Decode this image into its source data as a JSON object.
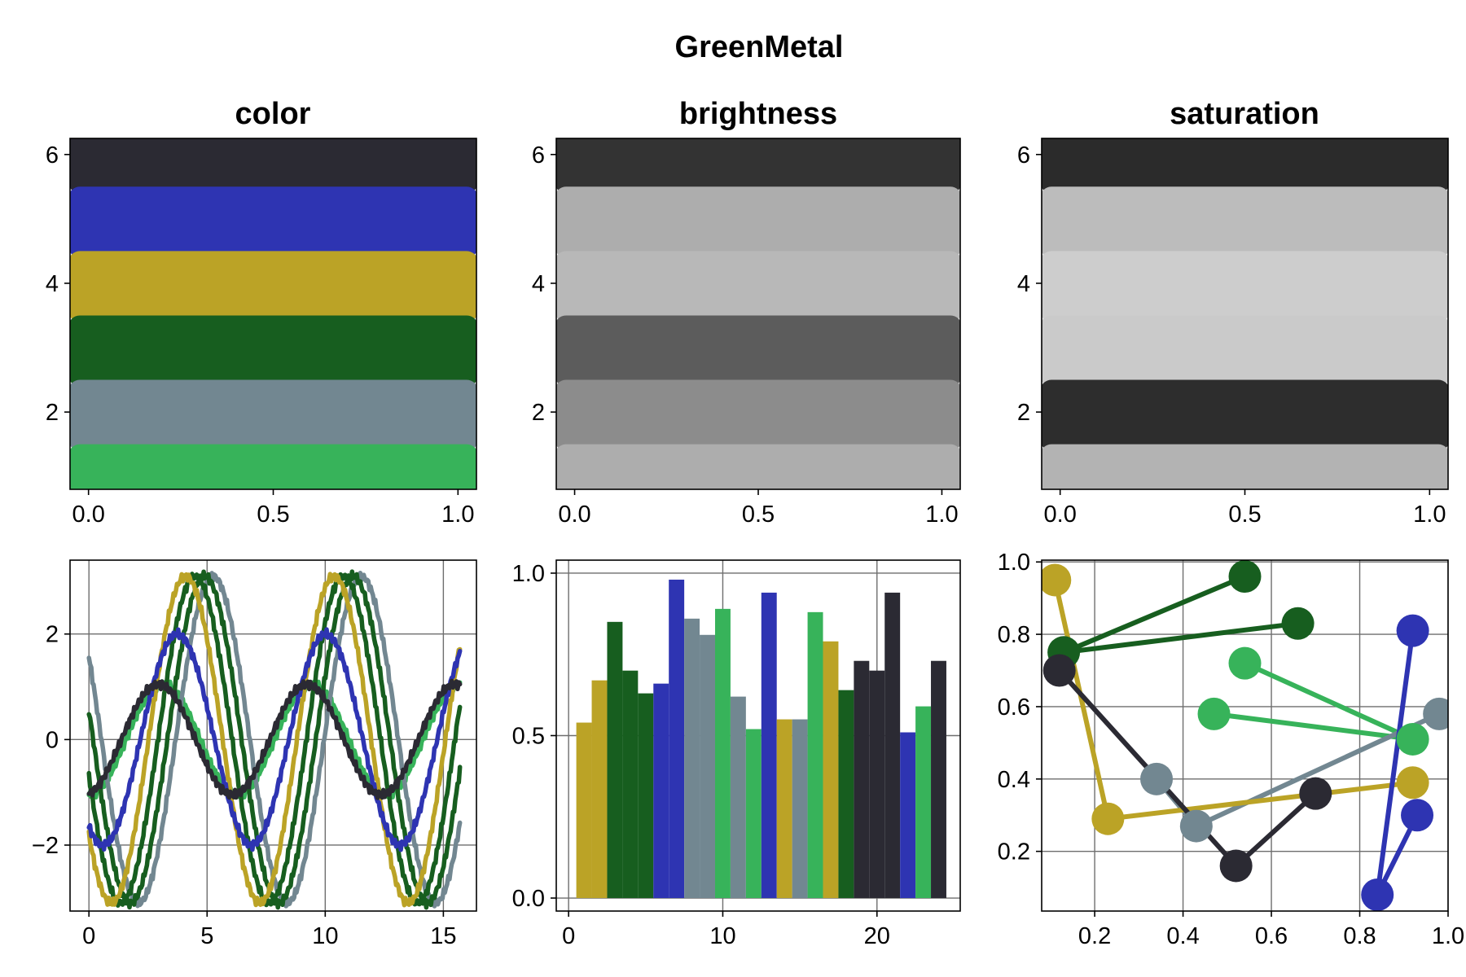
{
  "figure": {
    "title": "GreenMetal"
  },
  "palette": [
    "#37b35a",
    "#728791",
    "#175e1f",
    "#bba326",
    "#2e34b2",
    "#2b2a33"
  ],
  "chart_data": [
    {
      "type": "bar",
      "title": "color",
      "xlim": [
        -0.05,
        1.05
      ],
      "ylim": [
        0.8,
        6.25
      ],
      "xticks": [
        0.0,
        0.5,
        1.0
      ],
      "xtick_labels": [
        "0.0",
        "0.5",
        "1.0"
      ],
      "yticks": [
        2,
        4,
        6
      ],
      "ytick_labels": [
        "2",
        "4",
        "6"
      ],
      "grid": false,
      "bands": [
        {
          "level": 1,
          "color": "#37b35a"
        },
        {
          "level": 2,
          "color": "#728791"
        },
        {
          "level": 3,
          "color": "#175e1f"
        },
        {
          "level": 4,
          "color": "#bba326"
        },
        {
          "level": 5,
          "color": "#2e34b2"
        },
        {
          "level": 6,
          "color": "#2b2a33"
        }
      ]
    },
    {
      "type": "bar",
      "title": "brightness",
      "xlim": [
        -0.05,
        1.05
      ],
      "ylim": [
        0.8,
        6.25
      ],
      "xticks": [
        0.0,
        0.5,
        1.0
      ],
      "xtick_labels": [
        "0.0",
        "0.5",
        "1.0"
      ],
      "yticks": [
        2,
        4,
        6
      ],
      "ytick_labels": [
        "2",
        "4",
        "6"
      ],
      "grid": false,
      "bands": [
        {
          "level": 1,
          "color": "#adadad"
        },
        {
          "level": 2,
          "color": "#8c8c8c"
        },
        {
          "level": 3,
          "color": "#5c5c5c"
        },
        {
          "level": 4,
          "color": "#b8b8b8"
        },
        {
          "level": 5,
          "color": "#adadad"
        },
        {
          "level": 6,
          "color": "#333333"
        }
      ]
    },
    {
      "type": "bar",
      "title": "saturation",
      "xlim": [
        -0.05,
        1.05
      ],
      "ylim": [
        0.8,
        6.25
      ],
      "xticks": [
        0.0,
        0.5,
        1.0
      ],
      "xtick_labels": [
        "0.0",
        "0.5",
        "1.0"
      ],
      "yticks": [
        2,
        4,
        6
      ],
      "ytick_labels": [
        "2",
        "4",
        "6"
      ],
      "grid": false,
      "bands": [
        {
          "level": 1,
          "color": "#b3b3b3"
        },
        {
          "level": 2,
          "color": "#2d2d2d"
        },
        {
          "level": 3,
          "color": "#cacaca"
        },
        {
          "level": 4,
          "color": "#cdcdcd"
        },
        {
          "level": 5,
          "color": "#bcbcbc"
        },
        {
          "level": 6,
          "color": "#2b2b2b"
        }
      ]
    },
    {
      "type": "line",
      "xlim": [
        -0.8,
        16.4
      ],
      "ylim": [
        -3.25,
        3.4
      ],
      "xticks": [
        0,
        5,
        10,
        15
      ],
      "xtick_labels": [
        "0",
        "5",
        "10",
        "15"
      ],
      "yticks": [
        -2,
        0,
        2
      ],
      "ytick_labels": [
        "−2",
        "0",
        "2"
      ],
      "grid": true,
      "x_range": [
        0,
        15.7
      ],
      "series": [
        {
          "color": "#37b35a",
          "amplitude": 1.05,
          "phase_shift": 0.0
        },
        {
          "color": "#728791",
          "amplitude": 3.1,
          "phase_shift": 2.1
        },
        {
          "color": "#175e1f",
          "amplitude": 3.1,
          "phase_shift": 1.75
        },
        {
          "color": "#175e1f",
          "amplitude": 3.1,
          "phase_shift": 1.35
        },
        {
          "color": "#bba326",
          "amplitude": 3.1,
          "phase_shift": 0.95
        },
        {
          "color": "#2e34b2",
          "amplitude": 2.0,
          "phase_shift": 0.6
        },
        {
          "color": "#2b2a33",
          "amplitude": 1.05,
          "phase_shift": -0.2
        }
      ]
    },
    {
      "type": "bar",
      "xlim": [
        -0.8,
        25.4
      ],
      "ylim": [
        -0.04,
        1.04
      ],
      "xticks": [
        0,
        10,
        20
      ],
      "xtick_labels": [
        "0",
        "10",
        "20"
      ],
      "yticks": [
        0.0,
        0.5,
        1.0
      ],
      "ytick_labels": [
        "0.0",
        "0.5",
        "1.0"
      ],
      "grid": true,
      "categories": [
        1,
        2,
        3,
        4,
        5,
        6,
        7,
        8,
        9,
        10,
        11,
        12,
        13,
        14,
        15,
        16,
        17,
        18,
        19,
        20,
        21,
        22,
        23,
        24
      ],
      "values": [
        0.54,
        0.67,
        0.85,
        0.7,
        0.63,
        0.66,
        0.98,
        0.86,
        0.81,
        0.89,
        0.62,
        0.52,
        0.94,
        0.55,
        0.55,
        0.88,
        0.79,
        0.64,
        0.73,
        0.7,
        0.94,
        0.51,
        0.59,
        0.73
      ],
      "colors": [
        "#bba326",
        "#bba326",
        "#175e1f",
        "#175e1f",
        "#175e1f",
        "#2e34b2",
        "#2e34b2",
        "#728791",
        "#728791",
        "#37b35a",
        "#728791",
        "#37b35a",
        "#2e34b2",
        "#bba326",
        "#728791",
        "#37b35a",
        "#bba326",
        "#175e1f",
        "#2b2a33",
        "#2b2a33",
        "#2b2a33",
        "#2e34b2",
        "#37b35a",
        "#2b2a33"
      ]
    },
    {
      "type": "scatter",
      "xlim": [
        0.08,
        1.0
      ],
      "ylim": [
        0.035,
        1.005
      ],
      "xticks": [
        0.2,
        0.4,
        0.6,
        0.8,
        1.0
      ],
      "xtick_labels": [
        "0.2",
        "0.4",
        "0.6",
        "0.8",
        "1.0"
      ],
      "yticks": [
        0.2,
        0.4,
        0.6,
        0.8,
        1.0
      ],
      "ytick_labels": [
        "0.2",
        "0.4",
        "0.6",
        "0.8",
        "1.0"
      ],
      "grid": true,
      "series": [
        {
          "color": "#37b35a",
          "points": [
            [
              0.54,
              0.72
            ],
            [
              0.92,
              0.51
            ],
            [
              0.47,
              0.58
            ]
          ]
        },
        {
          "color": "#728791",
          "points": [
            [
              0.34,
              0.4
            ],
            [
              0.43,
              0.27
            ],
            [
              0.98,
              0.58
            ]
          ]
        },
        {
          "color": "#175e1f",
          "points": [
            [
              0.54,
              0.96
            ],
            [
              0.13,
              0.75
            ],
            [
              0.66,
              0.83
            ]
          ]
        },
        {
          "color": "#bba326",
          "points": [
            [
              0.11,
              0.95
            ],
            [
              0.23,
              0.29
            ],
            [
              0.92,
              0.39
            ]
          ]
        },
        {
          "color": "#2e34b2",
          "points": [
            [
              0.92,
              0.81
            ],
            [
              0.84,
              0.08
            ],
            [
              0.93,
              0.3
            ]
          ]
        },
        {
          "color": "#2b2a33",
          "points": [
            [
              0.12,
              0.7
            ],
            [
              0.52,
              0.16
            ],
            [
              0.7,
              0.36
            ]
          ]
        }
      ]
    }
  ]
}
